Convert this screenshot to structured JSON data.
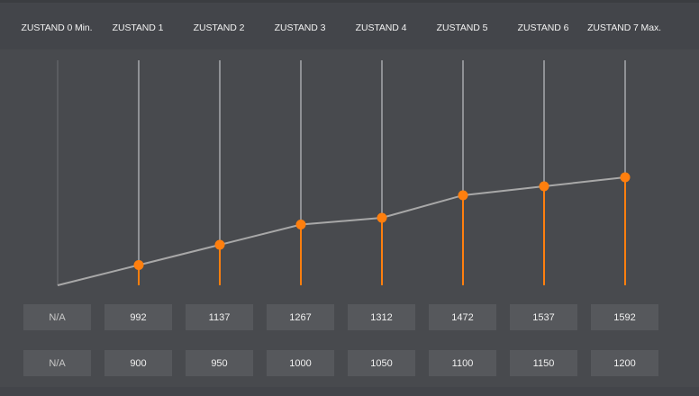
{
  "header": {
    "columns": [
      "ZUSTAND 0 Min.",
      "ZUSTAND 1",
      "ZUSTAND 2",
      "ZUSTAND 3",
      "ZUSTAND 4",
      "ZUSTAND 5",
      "ZUSTAND 6",
      "ZUSTAND 7 Max."
    ]
  },
  "rows": {
    "row1": [
      "N/A",
      "992",
      "1137",
      "1267",
      "1312",
      "1472",
      "1537",
      "1592"
    ],
    "row2": [
      "N/A",
      "900",
      "950",
      "1000",
      "1050",
      "1100",
      "1150",
      "1200"
    ]
  },
  "colors": {
    "accent": "#ff7f0e",
    "line": "#a8a8a8",
    "stem": "#8f9195",
    "stem_first": "#5a5c60"
  },
  "chart_data": {
    "type": "line",
    "categories": [
      "ZUSTAND 0 Min.",
      "ZUSTAND 1",
      "ZUSTAND 2",
      "ZUSTAND 3",
      "ZUSTAND 4",
      "ZUSTAND 5",
      "ZUSTAND 6",
      "ZUSTAND 7 Max."
    ],
    "values": [
      0.0,
      0.09,
      0.18,
      0.27,
      0.3,
      0.4,
      0.44,
      0.48
    ],
    "ylim": [
      0,
      1
    ],
    "markers_from_index": 1,
    "grid": false
  }
}
